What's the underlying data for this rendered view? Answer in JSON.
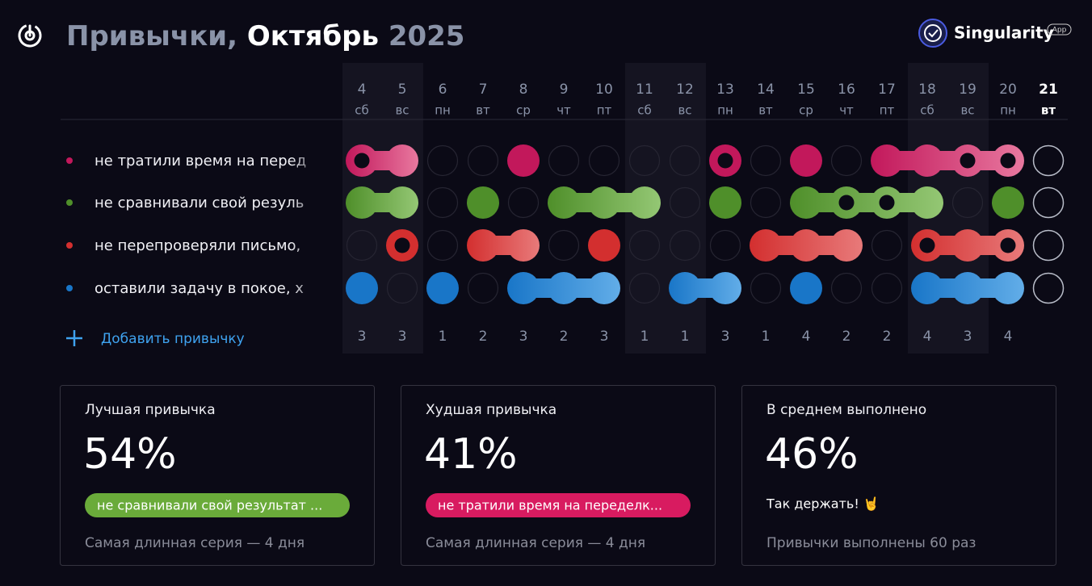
{
  "header": {
    "title_part1": "Привычки,",
    "title_part2": "Октябрь",
    "title_part3": "2025",
    "brand": "Singularity",
    "badge": "App"
  },
  "days": [
    {
      "num": "4",
      "wd": "сб",
      "weekend": true
    },
    {
      "num": "5",
      "wd": "вс",
      "weekend": true
    },
    {
      "num": "6",
      "wd": "пн",
      "weekend": false
    },
    {
      "num": "7",
      "wd": "вт",
      "weekend": false
    },
    {
      "num": "8",
      "wd": "ср",
      "weekend": false
    },
    {
      "num": "9",
      "wd": "чт",
      "weekend": false
    },
    {
      "num": "10",
      "wd": "пт",
      "weekend": false
    },
    {
      "num": "11",
      "wd": "сб",
      "weekend": true
    },
    {
      "num": "12",
      "wd": "вс",
      "weekend": true
    },
    {
      "num": "13",
      "wd": "пн",
      "weekend": false
    },
    {
      "num": "14",
      "wd": "вт",
      "weekend": false
    },
    {
      "num": "15",
      "wd": "ср",
      "weekend": false
    },
    {
      "num": "16",
      "wd": "чт",
      "weekend": false
    },
    {
      "num": "17",
      "wd": "пт",
      "weekend": false
    },
    {
      "num": "18",
      "wd": "сб",
      "weekend": true
    },
    {
      "num": "19",
      "wd": "вс",
      "weekend": true
    },
    {
      "num": "20",
      "wd": "пн",
      "weekend": false
    },
    {
      "num": "21",
      "wd": "вт",
      "weekend": false,
      "today": true
    }
  ],
  "habits": [
    {
      "name": "не тратили время на перед",
      "color": "#c2185b",
      "light": "#e8789f",
      "states": [
        "ring",
        "done",
        "empty",
        "empty",
        "done",
        "empty",
        "empty",
        "empty",
        "empty",
        "ring",
        "empty",
        "done",
        "empty",
        "done",
        "done",
        "ring",
        "ring",
        "empty"
      ]
    },
    {
      "name": "не сравнивали свой резуль",
      "color": "#4f8f2a",
      "light": "#94c774",
      "states": [
        "done",
        "done",
        "empty",
        "done",
        "empty",
        "done",
        "done",
        "done",
        "empty",
        "done",
        "empty",
        "done",
        "ring",
        "ring",
        "done",
        "empty",
        "done",
        "empty"
      ]
    },
    {
      "name": "не перепроверяли письмо,",
      "color": "#d32f2f",
      "light": "#e87a7a",
      "states": [
        "empty",
        "ring",
        "empty",
        "done",
        "done",
        "empty",
        "done",
        "empty",
        "empty",
        "empty",
        "done",
        "done",
        "done",
        "empty",
        "ring",
        "done",
        "ring",
        "empty"
      ]
    },
    {
      "name": "оставили задачу в покое, х",
      "color": "#1976c8",
      "light": "#62ade8",
      "states": [
        "done",
        "empty",
        "done",
        "empty",
        "done",
        "done",
        "done",
        "empty",
        "done",
        "done",
        "empty",
        "done",
        "empty",
        "empty",
        "done",
        "done",
        "done",
        "empty"
      ]
    }
  ],
  "add_habit": "Добавить привычку",
  "totals": [
    3,
    3,
    1,
    2,
    3,
    2,
    3,
    1,
    1,
    3,
    1,
    4,
    2,
    2,
    4,
    3,
    4
  ],
  "cards": [
    {
      "title": "Лучшая привычка",
      "value": "54%",
      "pill": "не сравнивали свой результат ...",
      "pill_color": "#6aab3a",
      "footer": "Самая длинная серия — 4 дня"
    },
    {
      "title": "Худшая привычка",
      "value": "41%",
      "pill": "не тратили время на переделк...",
      "pill_color": "#d81b60",
      "footer": "Самая длинная серия — 4 дня"
    },
    {
      "title": "В среднем выполнено",
      "value": "46%",
      "note": "Так держать! 🤘",
      "footer": "Привычки выполнены 60 раз"
    }
  ]
}
